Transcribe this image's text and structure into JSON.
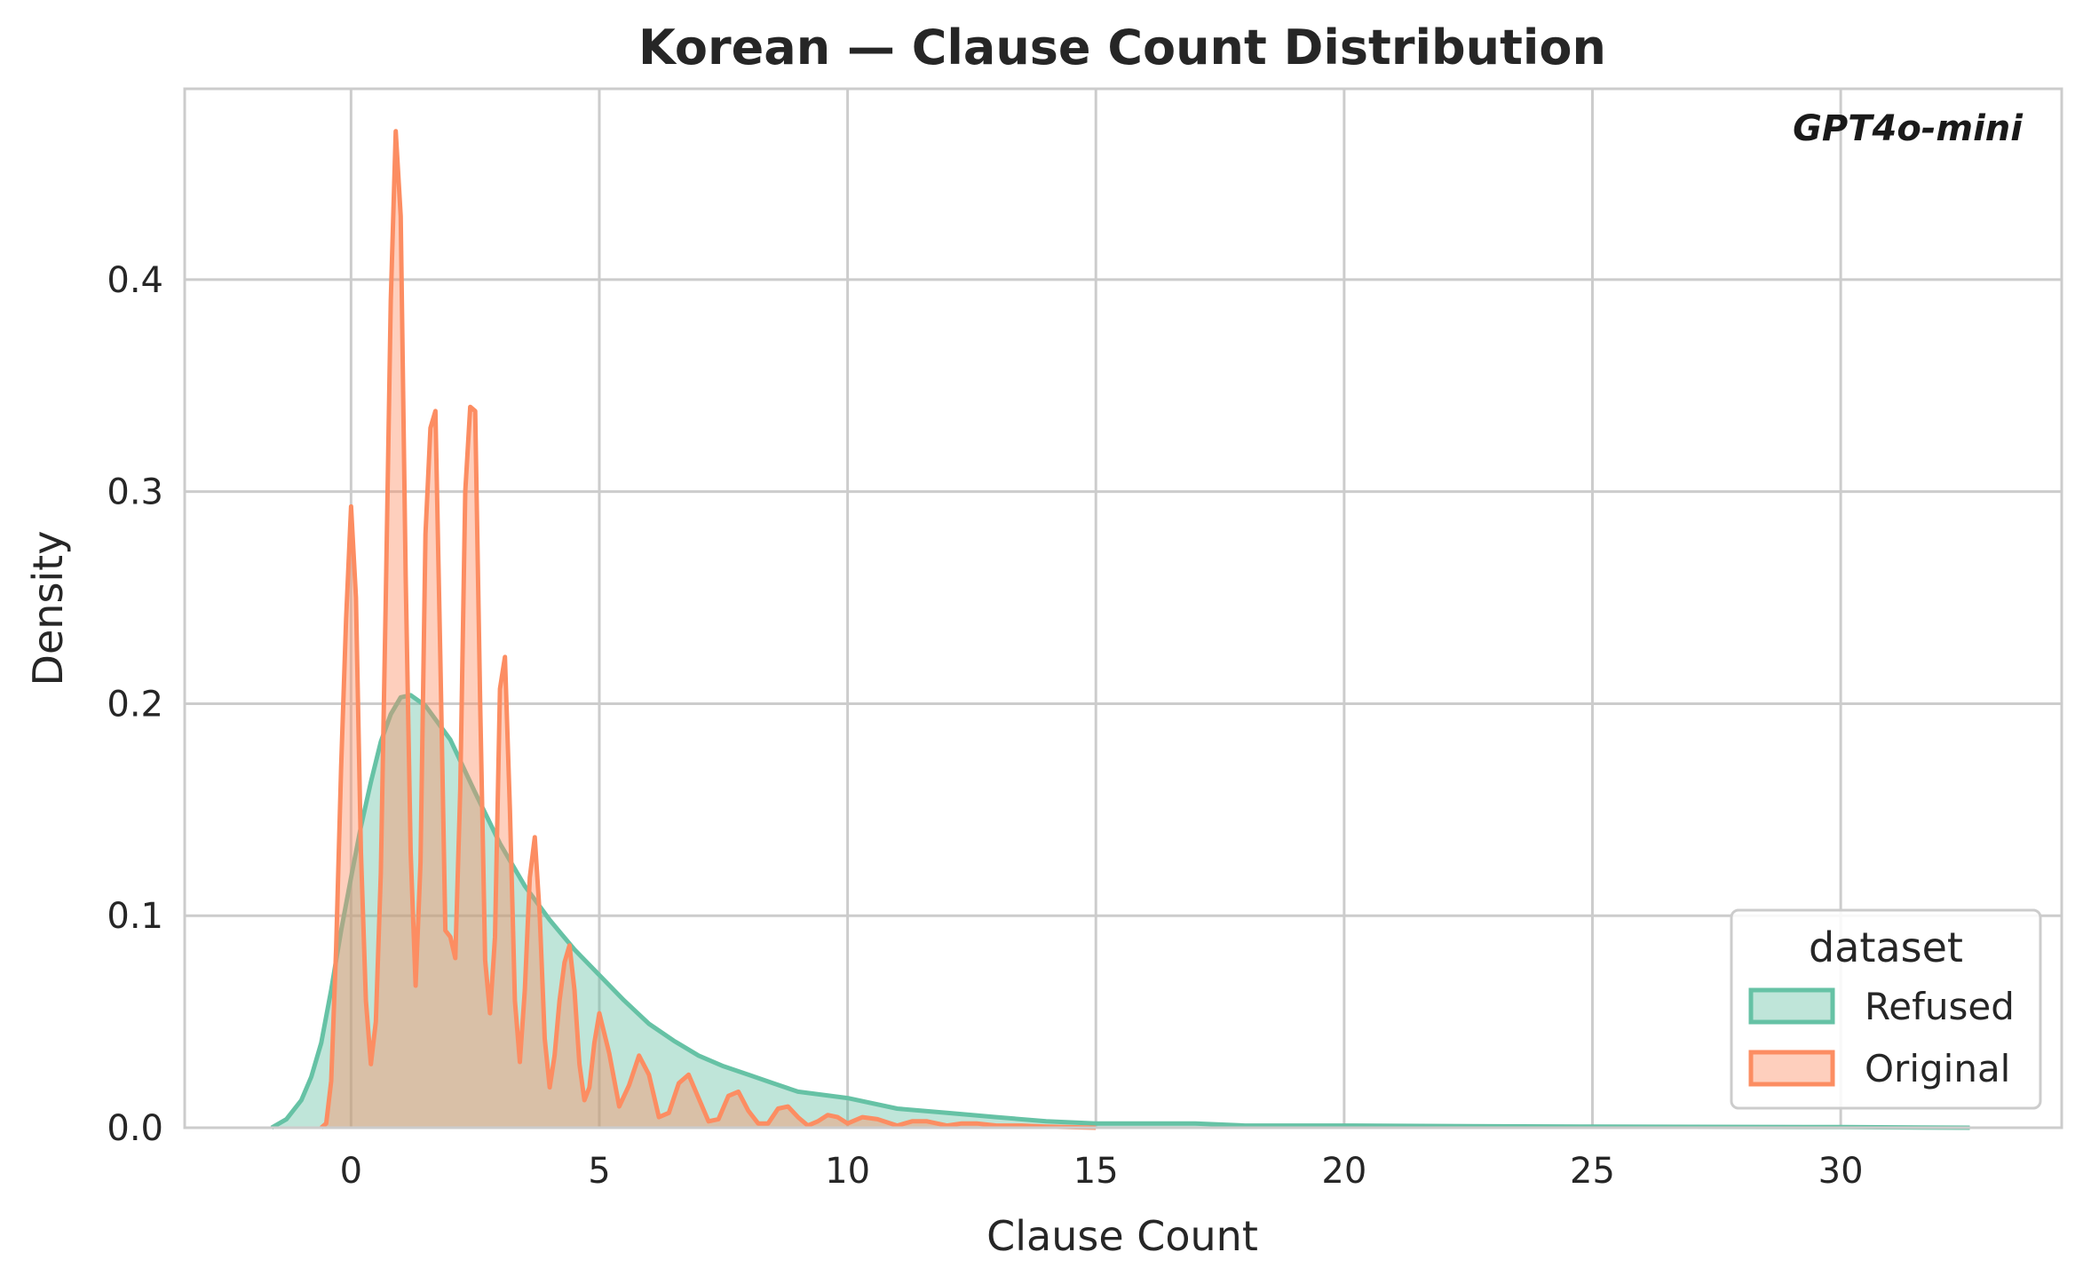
{
  "chart_data": {
    "type": "area",
    "title": "Korean — Clause Count Distribution",
    "xlabel": "Clause Count",
    "ylabel": "Density",
    "annotation": "GPT4o-mini",
    "xlim": [
      -3.35,
      34.45
    ],
    "ylim": [
      0,
      0.49
    ],
    "xticks": [
      0,
      5,
      10,
      15,
      20,
      25,
      30
    ],
    "yticks": [
      0.0,
      0.1,
      0.2,
      0.3,
      0.4
    ],
    "ytick_labels": [
      "0.0",
      "0.1",
      "0.2",
      "0.3",
      "0.4"
    ],
    "grid": true,
    "legend": {
      "title": "dataset",
      "placement": "lower-right",
      "entries": [
        "Refused",
        "Original"
      ]
    },
    "series": [
      {
        "name": "Refused",
        "color": "#66c2a5",
        "x": [
          -1.6,
          -1.3,
          -1.0,
          -0.8,
          -0.6,
          -0.4,
          -0.2,
          0.0,
          0.2,
          0.4,
          0.6,
          0.8,
          1.0,
          1.2,
          1.5,
          2.0,
          2.5,
          3.0,
          3.5,
          4.0,
          4.5,
          5.0,
          5.5,
          6.0,
          6.5,
          7.0,
          7.5,
          8.0,
          8.5,
          9.0,
          10.0,
          11.0,
          12.0,
          13.0,
          14.0,
          15.0,
          16.0,
          17.0,
          18.0,
          20.0,
          25.0,
          30.0,
          32.6
        ],
        "y": [
          0.0,
          0.004,
          0.013,
          0.024,
          0.04,
          0.065,
          0.093,
          0.118,
          0.142,
          0.163,
          0.182,
          0.195,
          0.203,
          0.204,
          0.199,
          0.183,
          0.158,
          0.134,
          0.114,
          0.098,
          0.084,
          0.072,
          0.06,
          0.049,
          0.041,
          0.034,
          0.029,
          0.025,
          0.021,
          0.017,
          0.014,
          0.009,
          0.007,
          0.005,
          0.003,
          0.002,
          0.002,
          0.002,
          0.001,
          0.001,
          0.0005,
          0.0003,
          0.0
        ]
      },
      {
        "name": "Original",
        "color": "#fc8d62",
        "x": [
          -0.6,
          -0.5,
          -0.4,
          -0.3,
          -0.2,
          -0.1,
          0.0,
          0.1,
          0.2,
          0.3,
          0.4,
          0.5,
          0.6,
          0.7,
          0.8,
          0.9,
          1.0,
          1.1,
          1.2,
          1.3,
          1.4,
          1.5,
          1.6,
          1.7,
          1.8,
          1.9,
          2.0,
          2.1,
          2.2,
          2.3,
          2.4,
          2.5,
          2.6,
          2.7,
          2.8,
          2.9,
          3.0,
          3.1,
          3.2,
          3.3,
          3.4,
          3.5,
          3.6,
          3.7,
          3.8,
          3.9,
          4.0,
          4.1,
          4.2,
          4.3,
          4.4,
          4.5,
          4.6,
          4.7,
          4.8,
          4.9,
          5.0,
          5.2,
          5.4,
          5.6,
          5.8,
          6.0,
          6.2,
          6.4,
          6.6,
          6.8,
          7.0,
          7.2,
          7.4,
          7.6,
          7.8,
          8.0,
          8.2,
          8.4,
          8.6,
          8.8,
          9.0,
          9.2,
          9.4,
          9.6,
          9.8,
          10.0,
          10.3,
          10.6,
          11.0,
          11.3,
          11.6,
          12.0,
          12.3,
          12.6,
          13.0,
          13.5,
          14.0,
          15.0
        ],
        "y": [
          0.0,
          0.002,
          0.022,
          0.085,
          0.17,
          0.24,
          0.293,
          0.25,
          0.13,
          0.06,
          0.03,
          0.05,
          0.12,
          0.25,
          0.39,
          0.47,
          0.43,
          0.26,
          0.13,
          0.067,
          0.125,
          0.28,
          0.33,
          0.338,
          0.22,
          0.093,
          0.09,
          0.08,
          0.16,
          0.3,
          0.34,
          0.338,
          0.2,
          0.079,
          0.054,
          0.09,
          0.207,
          0.222,
          0.15,
          0.06,
          0.031,
          0.065,
          0.118,
          0.137,
          0.1,
          0.042,
          0.019,
          0.034,
          0.06,
          0.078,
          0.086,
          0.065,
          0.03,
          0.013,
          0.019,
          0.04,
          0.054,
          0.035,
          0.01,
          0.02,
          0.034,
          0.025,
          0.005,
          0.007,
          0.021,
          0.025,
          0.014,
          0.003,
          0.004,
          0.015,
          0.017,
          0.008,
          0.002,
          0.002,
          0.009,
          0.01,
          0.005,
          0.001,
          0.003,
          0.006,
          0.005,
          0.002,
          0.005,
          0.004,
          0.001,
          0.003,
          0.003,
          0.001,
          0.002,
          0.002,
          0.001,
          0.001,
          0.0005,
          0.0
        ]
      }
    ]
  }
}
